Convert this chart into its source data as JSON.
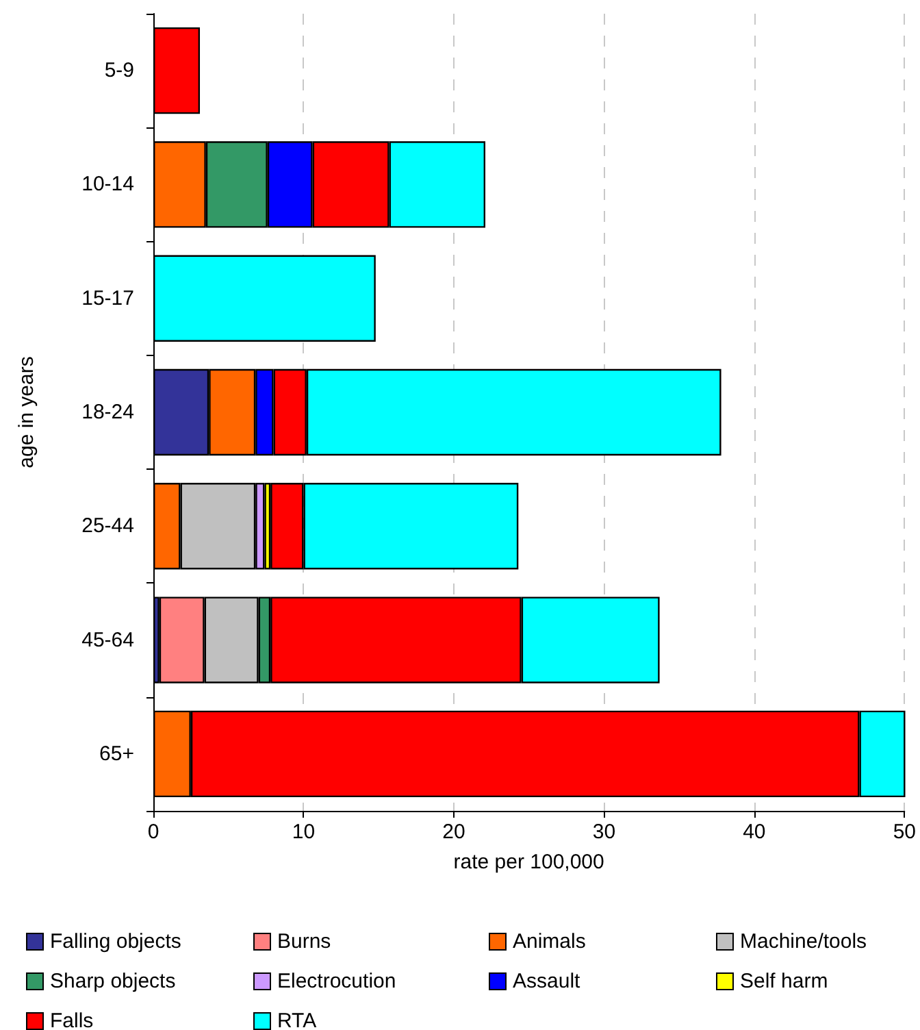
{
  "chart_data": {
    "type": "bar",
    "orientation": "horizontal",
    "stacked": true,
    "xlabel": "rate per 100,000",
    "ylabel": "age in years",
    "categories": [
      "5-9",
      "10-14",
      "15-17",
      "18-24",
      "25-44",
      "45-64",
      "65+"
    ],
    "xlim": [
      0,
      50
    ],
    "xticks": [
      0,
      10,
      20,
      30,
      40,
      50
    ],
    "grid": "x",
    "legend": "bottom",
    "series": [
      {
        "name": "Falling objects",
        "color": "#333399",
        "values": [
          null,
          null,
          null,
          3.7,
          null,
          0.4,
          null
        ]
      },
      {
        "name": "Burns",
        "color": "#ff8080",
        "values": [
          null,
          null,
          null,
          null,
          null,
          3.0,
          null
        ]
      },
      {
        "name": "Animals",
        "color": "#ff6600",
        "values": [
          null,
          3.5,
          null,
          3.1,
          1.8,
          null,
          2.5
        ]
      },
      {
        "name": "Machine/tools",
        "color": "#c0c0c0",
        "values": [
          null,
          null,
          null,
          null,
          5.0,
          3.6,
          null
        ]
      },
      {
        "name": "Sharp objects",
        "color": "#339966",
        "values": [
          null,
          4.1,
          null,
          null,
          null,
          0.8,
          null
        ]
      },
      {
        "name": "Electrocution",
        "color": "#cc99ff",
        "values": [
          null,
          null,
          null,
          null,
          0.6,
          null,
          null
        ]
      },
      {
        "name": "Assault",
        "color": "#0000ff",
        "values": [
          null,
          3.0,
          null,
          1.2,
          null,
          null,
          null
        ]
      },
      {
        "name": "Self harm",
        "color": "#ffff00",
        "values": [
          null,
          null,
          null,
          null,
          0.4,
          null,
          null
        ]
      },
      {
        "name": "Falls",
        "color": "#ff0000",
        "values": [
          3.1,
          5.1,
          null,
          2.2,
          2.2,
          16.7,
          44.5
        ]
      },
      {
        "name": "RTA",
        "color": "#00ffff",
        "values": [
          null,
          6.4,
          14.8,
          27.6,
          14.3,
          9.2,
          3.1
        ]
      }
    ]
  }
}
